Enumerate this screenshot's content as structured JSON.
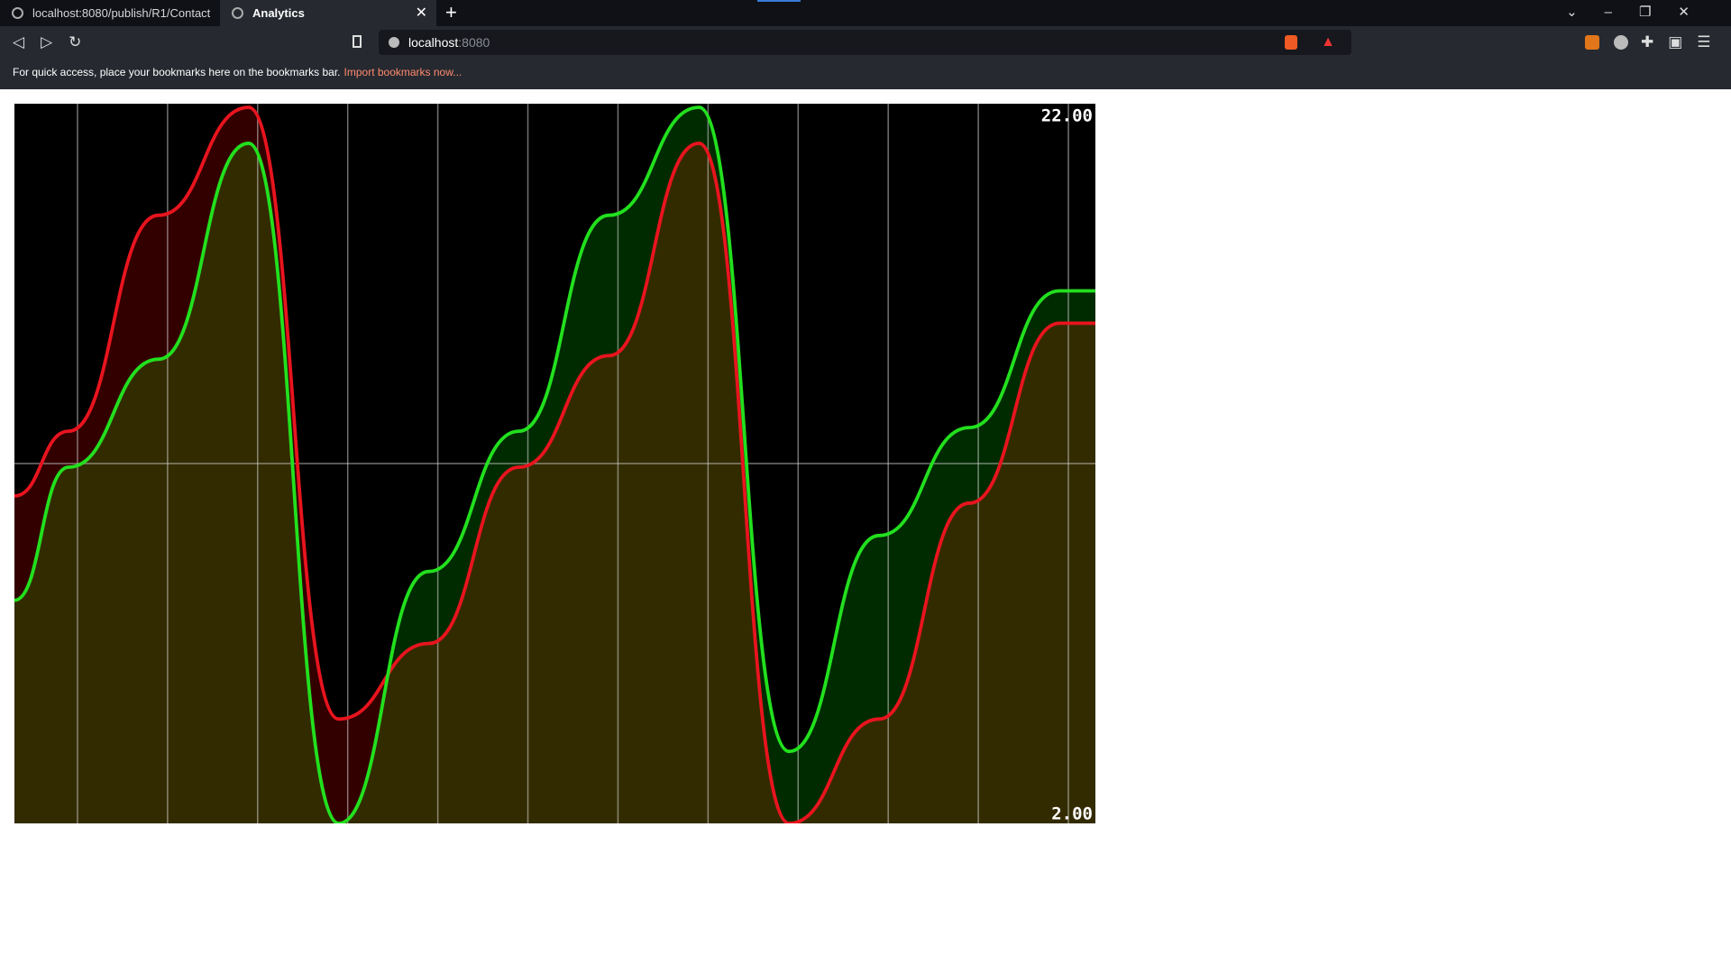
{
  "browser": {
    "tabs": [
      "localhost:8080/publish/R1/Contact",
      "Analytics"
    ],
    "url": {
      "host": "localhost",
      "port": ":8080"
    },
    "bookmarks_bar": {
      "text": "For quick access, place your bookmarks here on the bookmarks bar.",
      "link": "Import bookmarks now..."
    }
  },
  "chart_data": {
    "type": "line",
    "x": [
      0,
      0.6,
      1.6,
      2.6,
      3.6,
      4.6,
      5.6,
      6.6,
      7.6,
      8.6,
      9.6,
      10.6,
      11.6,
      12
    ],
    "series": [
      {
        "name": "red",
        "color": "#e8141e",
        "fill": "#330000",
        "values": [
          11.1,
          12.9,
          18.9,
          21.9,
          4.9,
          7.0,
          11.9,
          15.0,
          20.9,
          2.0,
          4.9,
          10.9,
          15.9,
          15.9
        ]
      },
      {
        "name": "green",
        "color": "#22e01e",
        "fill": "#002b00",
        "values": [
          8.2,
          11.9,
          14.9,
          20.9,
          2.0,
          9.0,
          12.9,
          18.9,
          21.9,
          4.0,
          10.0,
          13.0,
          16.8,
          16.8
        ]
      }
    ],
    "xlim": [
      0,
      12
    ],
    "ylim": [
      2,
      22
    ],
    "yticks": [
      {
        "value": 2,
        "label": "2.00"
      },
      {
        "value": 22,
        "label": "22.00"
      }
    ],
    "xgrid": [
      0.7,
      1.7,
      2.7,
      3.7,
      4.7,
      5.7,
      6.7,
      7.7,
      8.7,
      9.7,
      10.7,
      11.7
    ],
    "ygrid": [
      12
    ]
  }
}
